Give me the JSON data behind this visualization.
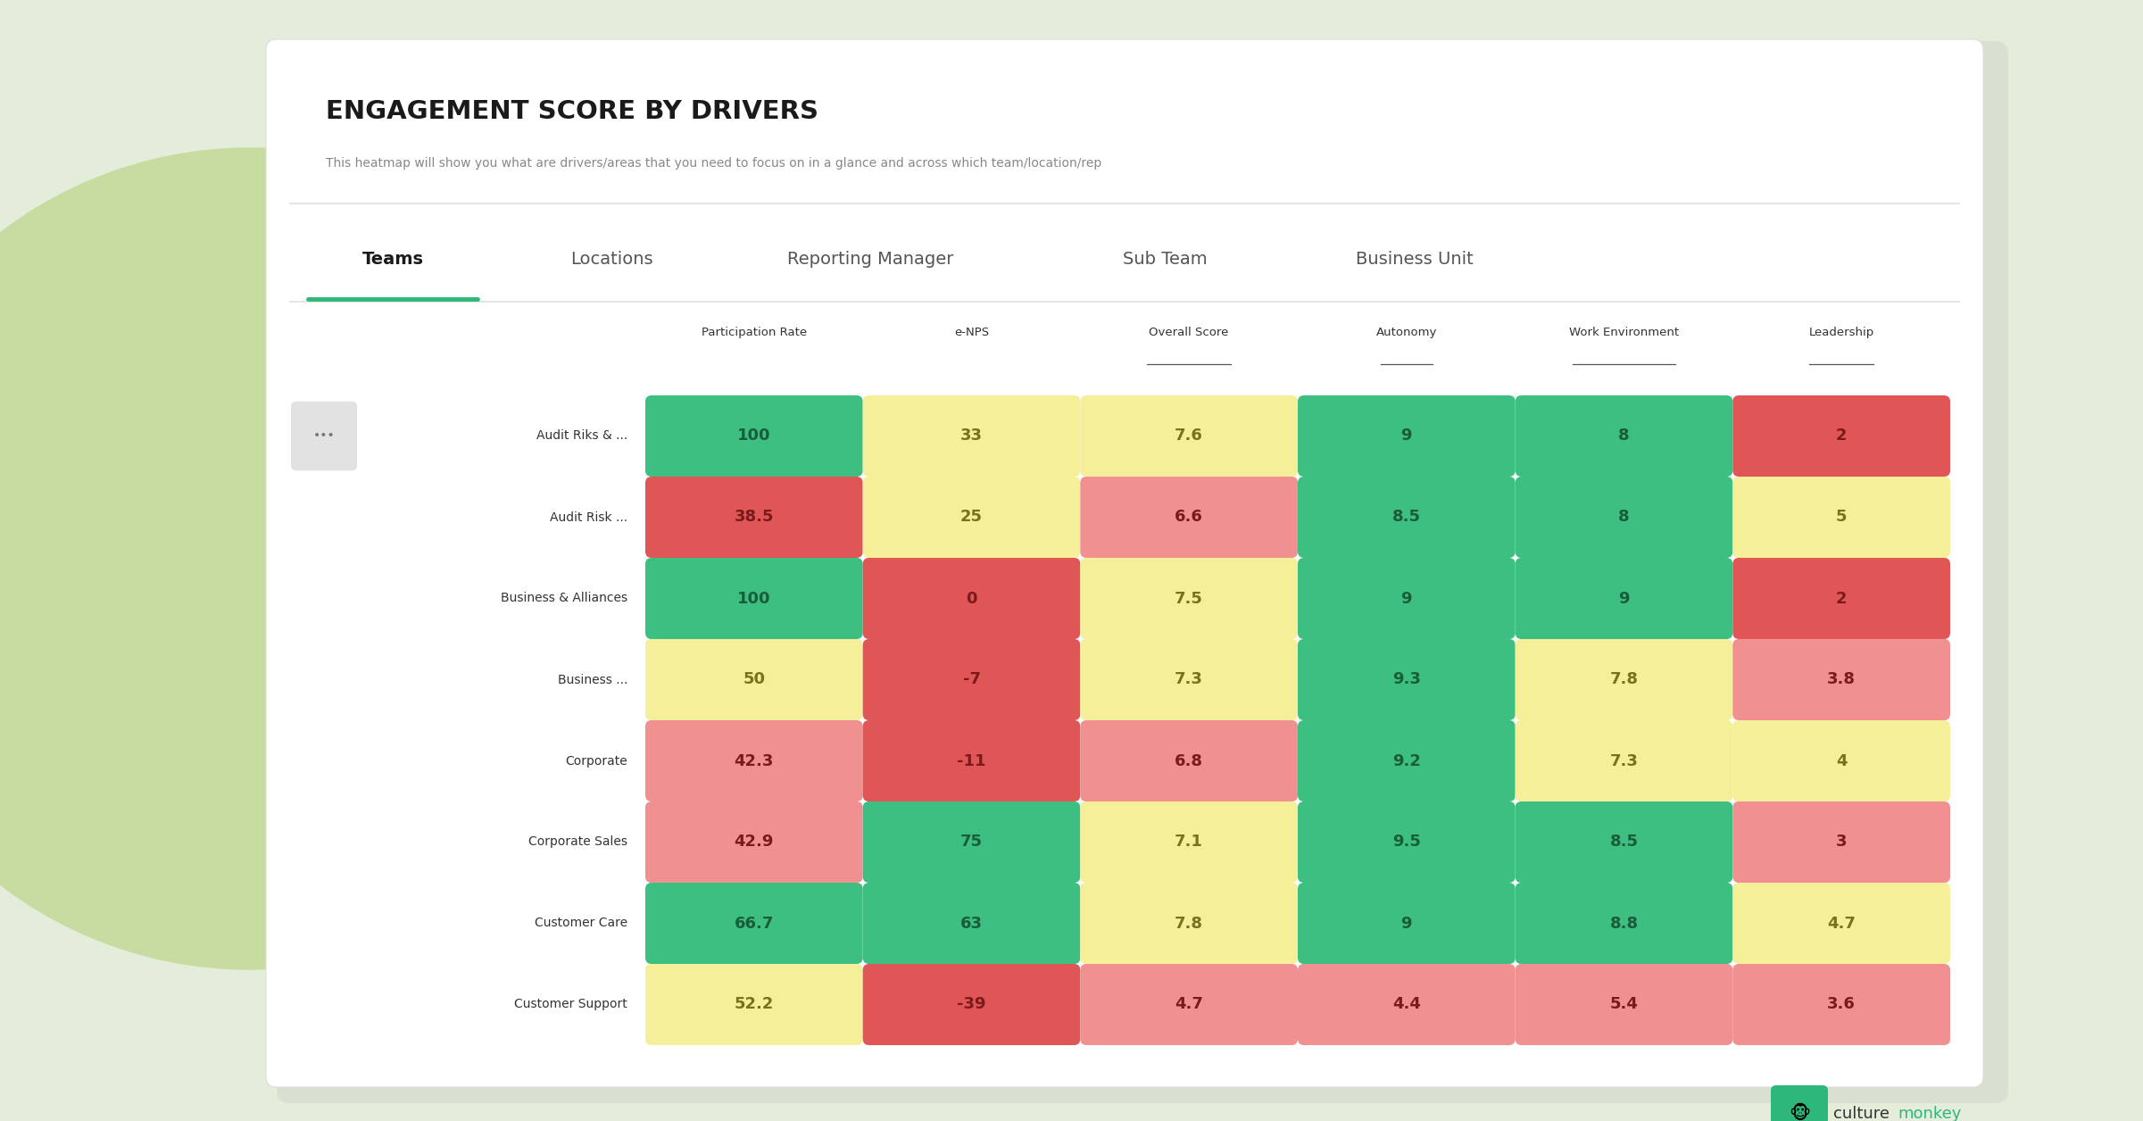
{
  "title": "ENGAGEMENT SCORE BY DRIVERS",
  "subtitle": "This heatmap will show you what are drivers/areas that you need to focus on in a glance and across which team/location/rep",
  "tabs": [
    "Teams",
    "Locations",
    "Reporting Manager",
    "Sub Team",
    "Business Unit"
  ],
  "active_tab": "Teams",
  "columns": [
    "Participation Rate",
    "e-NPS",
    "Overall Score",
    "Autonomy",
    "Work Environment",
    "Leadership"
  ],
  "underlined_cols": [
    "Overall Score",
    "Autonomy",
    "Work Environment",
    "Leadership"
  ],
  "rows": [
    {
      "name": "Audit Riks & ...",
      "values": [
        "100",
        "33",
        "7.6",
        "9",
        "8",
        "2"
      ]
    },
    {
      "name": "Audit Risk ...",
      "values": [
        "38.5",
        "25",
        "6.6",
        "8.5",
        "8",
        "5"
      ]
    },
    {
      "name": "Business & Alliances",
      "values": [
        "100",
        "0",
        "7.5",
        "9",
        "9",
        "2"
      ]
    },
    {
      "name": "Business ...",
      "values": [
        "50",
        "-7",
        "7.3",
        "9.3",
        "7.8",
        "3.8"
      ]
    },
    {
      "name": "Corporate",
      "values": [
        "42.3",
        "-11",
        "6.8",
        "9.2",
        "7.3",
        "4"
      ]
    },
    {
      "name": "Corporate Sales",
      "values": [
        "42.9",
        "75",
        "7.1",
        "9.5",
        "8.5",
        "3"
      ]
    },
    {
      "name": "Customer Care",
      "values": [
        "66.7",
        "63",
        "7.8",
        "9",
        "8.8",
        "4.7"
      ]
    },
    {
      "name": "Customer Support",
      "values": [
        "52.2",
        "-39",
        "4.7",
        "4.4",
        "5.4",
        "3.6"
      ]
    }
  ],
  "cell_colors": [
    [
      "#3cbf80",
      "#f5ef9a",
      "#f5ef9a",
      "#3cbf80",
      "#3cbf80",
      "#e05555"
    ],
    [
      "#e05555",
      "#f5ef9a",
      "#f09090",
      "#3cbf80",
      "#3cbf80",
      "#f5ef9a"
    ],
    [
      "#3cbf80",
      "#e05555",
      "#f5ef9a",
      "#3cbf80",
      "#3cbf80",
      "#e05555"
    ],
    [
      "#f5ef9a",
      "#e05555",
      "#f5ef9a",
      "#3cbf80",
      "#f5ef9a",
      "#f09090"
    ],
    [
      "#f09090",
      "#e05555",
      "#f09090",
      "#3cbf80",
      "#f5ef9a",
      "#f5ef9a"
    ],
    [
      "#f09090",
      "#3cbf80",
      "#f5ef9a",
      "#3cbf80",
      "#3cbf80",
      "#f09090"
    ],
    [
      "#3cbf80",
      "#3cbf80",
      "#f5ef9a",
      "#3cbf80",
      "#3cbf80",
      "#f5ef9a"
    ],
    [
      "#f5ef9a",
      "#e05555",
      "#f09090",
      "#f09090",
      "#f09090",
      "#f09090"
    ]
  ],
  "text_colors": [
    [
      "#1a5c3a",
      "#7a7020",
      "#7a7020",
      "#1a5c3a",
      "#1a5c3a",
      "#7a1a1a"
    ],
    [
      "#7a1a1a",
      "#7a7020",
      "#7a1a1a",
      "#1a5c3a",
      "#1a5c3a",
      "#7a7020"
    ],
    [
      "#1a5c3a",
      "#7a1a1a",
      "#7a7020",
      "#1a5c3a",
      "#1a5c3a",
      "#7a1a1a"
    ],
    [
      "#7a7020",
      "#7a1a1a",
      "#7a7020",
      "#1a5c3a",
      "#7a7020",
      "#7a1a1a"
    ],
    [
      "#7a1a1a",
      "#7a1a1a",
      "#7a1a1a",
      "#1a5c3a",
      "#7a7020",
      "#7a7020"
    ],
    [
      "#7a1a1a",
      "#1a5c3a",
      "#7a7020",
      "#1a5c3a",
      "#1a5c3a",
      "#7a1a1a"
    ],
    [
      "#1a5c3a",
      "#1a5c3a",
      "#7a7020",
      "#1a5c3a",
      "#1a5c3a",
      "#7a7020"
    ],
    [
      "#7a7020",
      "#7a1a1a",
      "#7a1a1a",
      "#7a1a1a",
      "#7a1a1a",
      "#7a1a1a"
    ]
  ],
  "bg_color": "#e4ecda",
  "card_bg": "#ffffff",
  "active_tab_color": "#2db87a",
  "logo_monkey_bg": "#2db87a",
  "logo_text_monkey": "#2db87a",
  "logo_text_culture": "#333333",
  "blob_color": "#c8dba0"
}
